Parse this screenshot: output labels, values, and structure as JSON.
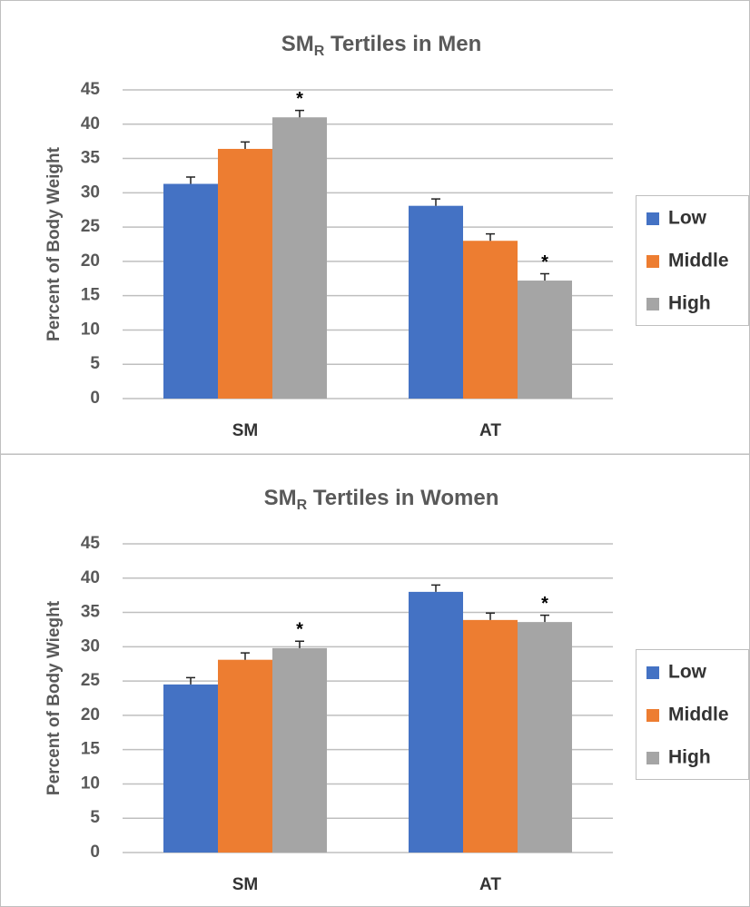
{
  "chart_data": [
    {
      "type": "bar",
      "title": "SM",
      "title_subscript": "R",
      "title_rest": " Tertiles in Men",
      "ylabel": "Percent of Body Weight",
      "categories": [
        "SM",
        "AT"
      ],
      "series": [
        {
          "name": "Low",
          "color": "#4472c4",
          "values": [
            31.3,
            28.1
          ],
          "errors": [
            1.0,
            1.0
          ]
        },
        {
          "name": "Middle",
          "color": "#ed7d31",
          "values": [
            36.4,
            23.0
          ],
          "errors": [
            1.0,
            1.0
          ]
        },
        {
          "name": "High",
          "color": "#a5a5a5",
          "values": [
            41.0,
            17.2
          ],
          "errors": [
            1.0,
            1.0
          ],
          "annotations": [
            "*",
            "*"
          ]
        }
      ],
      "ylim": [
        0,
        45
      ],
      "yticks": [
        0,
        5,
        10,
        15,
        20,
        25,
        30,
        35,
        40,
        45
      ],
      "grid": true,
      "legend": "right"
    },
    {
      "type": "bar",
      "title": "SM",
      "title_subscript": "R",
      "title_rest": " Tertiles in Women",
      "ylabel": "Percent of Body Wieght",
      "categories": [
        "SM",
        "AT"
      ],
      "series": [
        {
          "name": "Low",
          "color": "#4472c4",
          "values": [
            24.5,
            38.0
          ],
          "errors": [
            1.0,
            1.0
          ]
        },
        {
          "name": "Middle",
          "color": "#ed7d31",
          "values": [
            28.1,
            33.9
          ],
          "errors": [
            1.0,
            1.0
          ]
        },
        {
          "name": "High",
          "color": "#a5a5a5",
          "values": [
            29.8,
            33.6
          ],
          "errors": [
            1.0,
            1.0
          ],
          "annotations": [
            "*",
            "*"
          ]
        }
      ],
      "ylim": [
        0,
        45
      ],
      "yticks": [
        0,
        5,
        10,
        15,
        20,
        25,
        30,
        35,
        40,
        45
      ],
      "grid": true,
      "legend": "right"
    }
  ]
}
